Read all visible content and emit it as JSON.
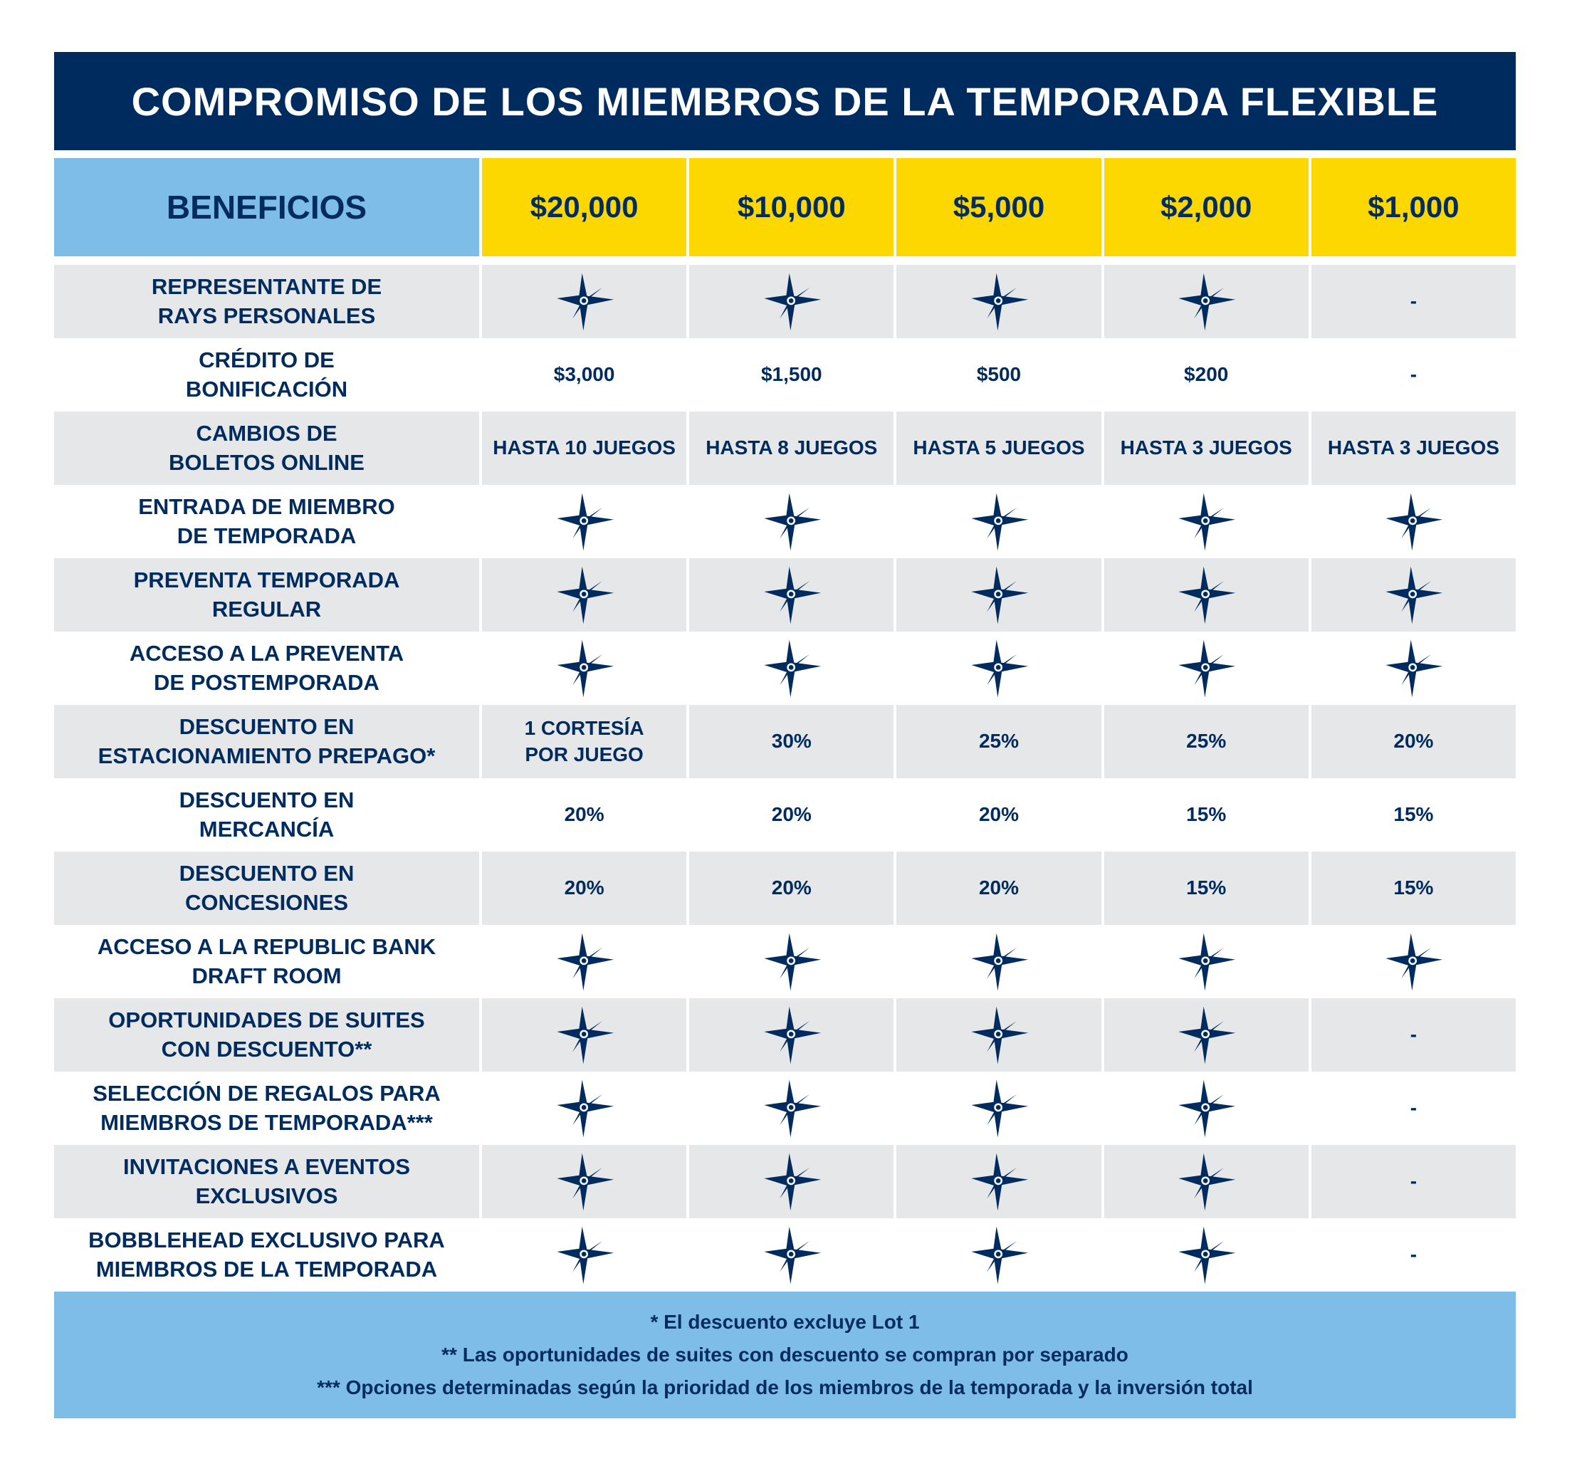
{
  "title": "COMPROMISO DE LOS MIEMBROS DE LA TEMPORADA FLEXIBLE",
  "header": [
    "BENEFICIOS",
    "$20,000",
    "$10,000",
    "$5,000",
    "$2,000",
    "$1,000"
  ],
  "table": {
    "rows": [
      [
        "REPRESENTANTE DE\nRAYS PERSONALES",
        null,
        null,
        null,
        null,
        "-"
      ],
      [
        "CRÉDITO DE\nBONIFICACIÓN",
        "$3,000",
        "$1,500",
        "$500",
        "$200",
        "-"
      ],
      [
        "CAMBIOS DE\nBOLETOS ONLINE",
        "HASTA 10 JUEGOS",
        "HASTA 8 JUEGOS",
        "HASTA 5 JUEGOS",
        "HASTA 3 JUEGOS",
        "HASTA 3 JUEGOS"
      ],
      [
        "ENTRADA DE MIEMBRO\nDE TEMPORADA",
        null,
        null,
        null,
        null,
        null
      ],
      [
        "PREVENTA TEMPORADA\nREGULAR",
        null,
        null,
        null,
        null,
        null
      ],
      [
        "ACCESO A LA PREVENTA\nDE POSTEMPORADA",
        null,
        null,
        null,
        null,
        null
      ],
      [
        "DESCUENTO EN\nESTACIONAMIENTO PREPAGO*",
        "1 CORTESÍA\nPOR JUEGO",
        "30%",
        "25%",
        "25%",
        "20%"
      ],
      [
        "DESCUENTO EN\nMERCANCÍA",
        "20%",
        "20%",
        "20%",
        "15%",
        "15%"
      ],
      [
        "DESCUENTO EN\nCONCESIONES",
        "20%",
        "20%",
        "20%",
        "15%",
        "15%"
      ],
      [
        "ACCESO A LA REPUBLIC BANK\nDRAFT ROOM",
        null,
        null,
        null,
        null,
        null
      ],
      [
        "OPORTUNIDADES DE SUITES\nCON DESCUENTO**",
        null,
        null,
        null,
        null,
        "-"
      ],
      [
        "SELECCIÓN DE REGALOS PARA\nMIEMBROS DE TEMPORADA***",
        null,
        null,
        null,
        null,
        "-"
      ],
      [
        "INVITACIONES A EVENTOS\nEXCLUSIVOS",
        null,
        null,
        null,
        null,
        "-"
      ],
      [
        "BOBBLEHEAD EXCLUSIVO PARA\nMIEMBROS DE LA TEMPORADA",
        null,
        null,
        null,
        null,
        "-"
      ]
    ]
  },
  "footer": [
    "* El descuento excluye Lot 1",
    "** Las oportunidades de suites con descuento se compran por separado",
    "*** Opciones determinadas según la prioridad de los miembros de la temporada y la inversión total"
  ]
}
